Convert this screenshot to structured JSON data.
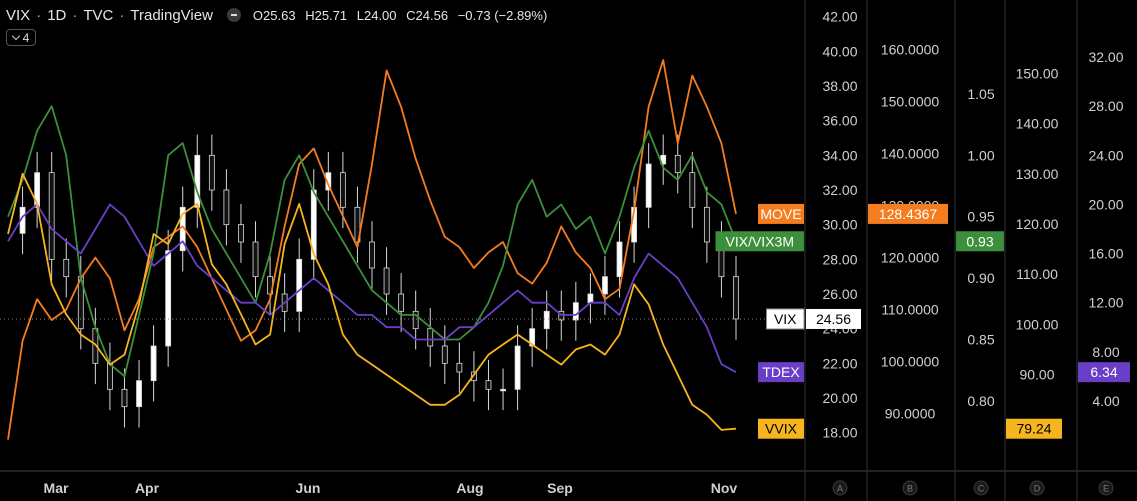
{
  "header": {
    "symbol": "VIX",
    "interval": "1D",
    "exchange": "TVC",
    "source": "TradingView",
    "open_label": "O25.63",
    "high_label": "H25.71",
    "low_label": "L24.00",
    "close_label": "C24.56",
    "change_label": "−0.73 (−2.89%)",
    "collapse_count": "4"
  },
  "colors": {
    "background": "#000000",
    "vix_candles": "#d9d9d9",
    "vix_line": "#ffffff",
    "move": "#f57c1f",
    "vix_vix3m": "#3d8f3d",
    "tdex": "#6a3fc8",
    "vvix": "#f6b51e",
    "grid": "#2b2b2b"
  },
  "chart_data": {
    "type": "line",
    "x_tick_labels": [
      "Mar",
      "Apr",
      "Jun",
      "Aug",
      "Sep",
      "Nov"
    ],
    "scale_ids": [
      "A",
      "B",
      "C",
      "D",
      "E"
    ],
    "axes": [
      {
        "id": "A",
        "series": "VIX",
        "ylim": [
          17.0,
          42.5
        ],
        "ticks": [
          "42.00",
          "40.00",
          "38.00",
          "36.00",
          "34.00",
          "32.00",
          "30.00",
          "28.00",
          "26.00",
          "24.00",
          "22.00",
          "20.00",
          "18.00"
        ]
      },
      {
        "id": "B",
        "series": "MOVE",
        "ylim": [
          83.0,
          168.0
        ],
        "ticks": [
          "160.0000",
          "150.0000",
          "140.0000",
          "130.0000",
          "120.0000",
          "110.0000",
          "100.0000",
          "90.0000"
        ]
      },
      {
        "id": "C",
        "series": "VIX/VIX3M",
        "ylim": [
          0.76,
          1.12
        ],
        "ticks": [
          "1.05",
          "1.00",
          "0.95",
          "0.90",
          "0.85",
          "0.80"
        ]
      },
      {
        "id": "D",
        "series": "VVIX",
        "ylim": [
          75.0,
          163.0
        ],
        "ticks": [
          "150.00",
          "140.00",
          "130.00",
          "120.00",
          "110.00",
          "100.00",
          "90.00"
        ]
      },
      {
        "id": "E",
        "series": "TDEX",
        "ylim": [
          0.0,
          36.0
        ],
        "ticks": [
          "32.00",
          "28.00",
          "24.00",
          "20.00",
          "16.00",
          "12.00",
          "8.00",
          "4.00"
        ]
      }
    ],
    "last_value_labels": [
      {
        "name": "MOVE",
        "value": "128.4367",
        "axis": "B"
      },
      {
        "name": "VIX/VIX3M",
        "value": "0.93",
        "axis": "C"
      },
      {
        "name": "VIX",
        "value": "24.56",
        "axis": "A"
      },
      {
        "name": "TDEX",
        "value": "6.34",
        "axis": "E"
      },
      {
        "name": "VVIX",
        "value": "79.24",
        "axis": "D"
      }
    ],
    "series": [
      {
        "name": "VIX",
        "type": "candlestick",
        "axis": "A",
        "x": [
          0,
          0.02,
          0.04,
          0.06,
          0.08,
          0.1,
          0.12,
          0.14,
          0.16,
          0.18,
          0.2,
          0.22,
          0.24,
          0.26,
          0.28,
          0.3,
          0.32,
          0.34,
          0.36,
          0.38,
          0.4,
          0.42,
          0.44,
          0.46,
          0.48,
          0.5,
          0.52,
          0.54,
          0.56,
          0.58,
          0.6,
          0.62,
          0.64,
          0.66,
          0.68,
          0.7,
          0.72,
          0.74,
          0.76,
          0.78,
          0.8,
          0.82,
          0.84,
          0.86,
          0.88,
          0.9,
          0.92,
          0.94,
          0.96,
          0.98,
          1.0
        ],
        "values": [
          29.5,
          31.0,
          33.0,
          28.0,
          27.0,
          24.0,
          22.0,
          20.5,
          19.5,
          21.0,
          23.0,
          28.5,
          31.0,
          34.0,
          32.0,
          30.0,
          29.0,
          27.0,
          26.0,
          25.0,
          28.0,
          32.0,
          33.0,
          31.0,
          29.0,
          27.5,
          26.0,
          25.0,
          24.0,
          23.0,
          22.0,
          21.5,
          21.0,
          20.5,
          20.5,
          23.0,
          24.0,
          25.0,
          24.5,
          25.5,
          26.0,
          27.0,
          29.0,
          31.0,
          33.5,
          34.0,
          33.0,
          31.0,
          29.0,
          27.0,
          24.56
        ]
      },
      {
        "name": "MOVE",
        "axis": "B",
        "x": [
          0,
          0.02,
          0.04,
          0.06,
          0.08,
          0.1,
          0.12,
          0.14,
          0.16,
          0.18,
          0.2,
          0.22,
          0.24,
          0.26,
          0.28,
          0.3,
          0.32,
          0.34,
          0.36,
          0.38,
          0.4,
          0.42,
          0.44,
          0.46,
          0.48,
          0.5,
          0.52,
          0.54,
          0.56,
          0.58,
          0.6,
          0.62,
          0.64,
          0.66,
          0.68,
          0.7,
          0.72,
          0.74,
          0.76,
          0.78,
          0.8,
          0.82,
          0.84,
          0.86,
          0.88,
          0.9,
          0.92,
          0.94,
          0.96,
          0.98,
          1.0
        ],
        "values": [
          85,
          104,
          112,
          108,
          110,
          116,
          120,
          116,
          106,
          112,
          122,
          124,
          126,
          122,
          116,
          110,
          104,
          106,
          112,
          126,
          138,
          141,
          134,
          128,
          122,
          138,
          156,
          149,
          139,
          131,
          124,
          122,
          118,
          121,
          123,
          117,
          115,
          119,
          126,
          121,
          118,
          112,
          114,
          129,
          149,
          158,
          142,
          155,
          149,
          142,
          128.4
        ]
      },
      {
        "name": "VIX/VIX3M",
        "axis": "C",
        "x": [
          0,
          0.02,
          0.04,
          0.06,
          0.08,
          0.1,
          0.12,
          0.14,
          0.16,
          0.18,
          0.2,
          0.22,
          0.24,
          0.26,
          0.28,
          0.3,
          0.32,
          0.34,
          0.36,
          0.38,
          0.4,
          0.42,
          0.44,
          0.46,
          0.48,
          0.5,
          0.52,
          0.54,
          0.56,
          0.58,
          0.6,
          0.62,
          0.64,
          0.66,
          0.68,
          0.7,
          0.72,
          0.74,
          0.76,
          0.78,
          0.8,
          0.82,
          0.84,
          0.86,
          0.88,
          0.9,
          0.92,
          0.94,
          0.96,
          0.98,
          1.0
        ],
        "values": [
          0.95,
          0.98,
          1.02,
          1.04,
          1.0,
          0.9,
          0.86,
          0.83,
          0.82,
          0.87,
          0.92,
          1.0,
          1.01,
          0.97,
          0.94,
          0.92,
          0.9,
          0.88,
          0.92,
          0.98,
          1.0,
          0.97,
          0.95,
          0.93,
          0.91,
          0.89,
          0.88,
          0.87,
          0.87,
          0.86,
          0.85,
          0.85,
          0.86,
          0.88,
          0.91,
          0.96,
          0.98,
          0.95,
          0.96,
          0.94,
          0.95,
          0.92,
          0.95,
          0.99,
          1.02,
          0.99,
          0.98,
          1.0,
          0.97,
          0.96,
          0.93
        ]
      },
      {
        "name": "TDEX",
        "axis": "E",
        "x": [
          0,
          0.02,
          0.04,
          0.06,
          0.08,
          0.1,
          0.12,
          0.14,
          0.16,
          0.18,
          0.2,
          0.22,
          0.24,
          0.26,
          0.28,
          0.3,
          0.32,
          0.34,
          0.36,
          0.38,
          0.4,
          0.42,
          0.44,
          0.46,
          0.48,
          0.5,
          0.52,
          0.54,
          0.56,
          0.58,
          0.6,
          0.62,
          0.64,
          0.66,
          0.68,
          0.7,
          0.72,
          0.74,
          0.76,
          0.78,
          0.8,
          0.82,
          0.84,
          0.86,
          0.88,
          0.9,
          0.92,
          0.94,
          0.96,
          0.98,
          1.0
        ],
        "values": [
          17,
          19,
          20,
          18,
          17,
          16,
          18,
          20,
          19,
          17,
          15,
          16,
          17,
          15,
          14,
          13,
          12,
          12,
          11,
          12,
          13,
          14,
          13,
          12,
          11,
          11,
          10,
          10,
          9,
          9,
          9,
          10,
          10,
          11,
          12,
          13,
          12,
          12,
          11,
          11,
          12,
          12,
          11,
          14,
          16,
          15,
          14,
          12,
          10,
          7,
          6.34
        ]
      },
      {
        "name": "VVIX",
        "axis": "D",
        "x": [
          0,
          0.02,
          0.04,
          0.06,
          0.08,
          0.1,
          0.12,
          0.14,
          0.16,
          0.18,
          0.2,
          0.22,
          0.24,
          0.26,
          0.28,
          0.3,
          0.32,
          0.34,
          0.36,
          0.38,
          0.4,
          0.42,
          0.44,
          0.46,
          0.48,
          0.5,
          0.52,
          0.54,
          0.56,
          0.58,
          0.6,
          0.62,
          0.64,
          0.66,
          0.68,
          0.7,
          0.72,
          0.74,
          0.76,
          0.78,
          0.8,
          0.82,
          0.84,
          0.86,
          0.88,
          0.9,
          0.92,
          0.94,
          0.96,
          0.98,
          1.0
        ],
        "values": [
          118,
          130,
          124,
          108,
          102,
          98,
          96,
          92,
          94,
          104,
          118,
          116,
          122,
          124,
          112,
          108,
          102,
          96,
          98,
          116,
          124,
          114,
          108,
          98,
          94,
          92,
          90,
          88,
          86,
          84,
          84,
          86,
          90,
          94,
          96,
          98,
          96,
          94,
          92,
          95,
          96,
          94,
          98,
          108,
          104,
          96,
          90,
          84,
          82,
          79,
          79.24
        ]
      }
    ]
  }
}
